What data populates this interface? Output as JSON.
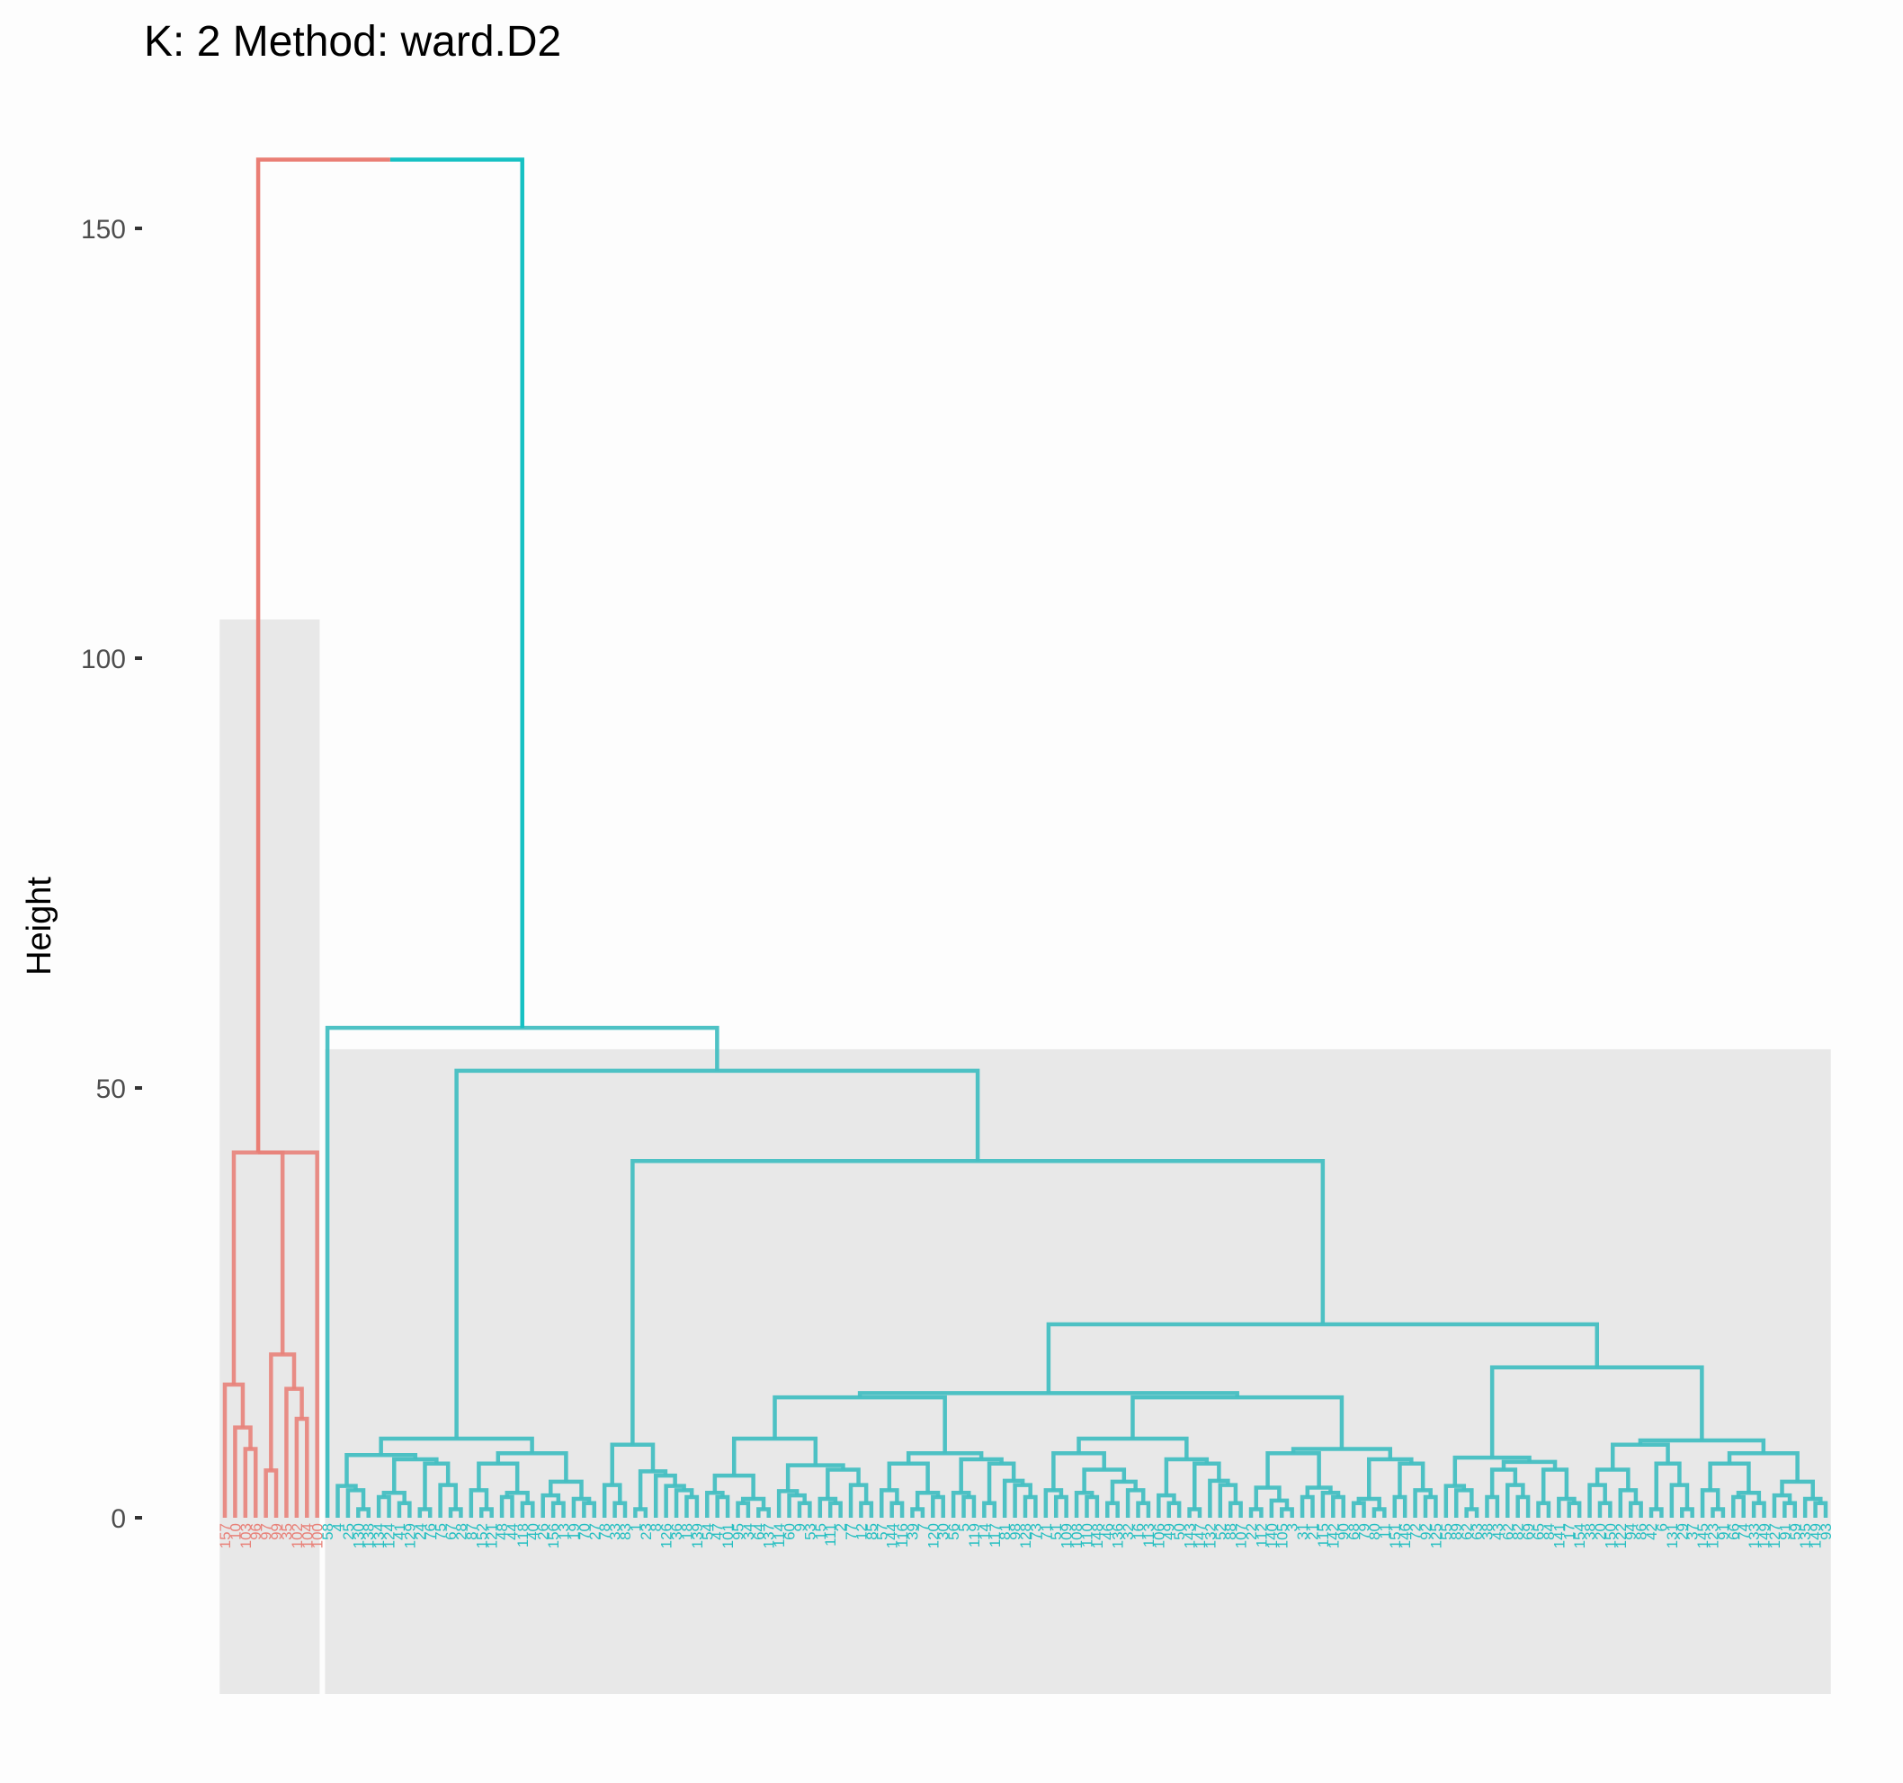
{
  "chart_data": {
    "type": "dendrogram",
    "title": "K: 2  Method: ward.D2",
    "ylabel": "Height",
    "xlabel": "",
    "ylim": [
      -20.5,
      158
    ],
    "yticks": [
      0,
      50,
      100,
      150
    ],
    "ytick_labels": [
      "0",
      "50",
      "100",
      "150"
    ],
    "k": 2,
    "method": "ward.D2",
    "cluster_colors": [
      "#E8827A",
      "#26BFC1"
    ],
    "rect_fill": "#e8e8e8",
    "clusters": [
      {
        "name": "1",
        "color": "#E8827A",
        "leaves": [
          "157",
          "10",
          "103",
          "96",
          "97",
          "99",
          "35",
          "102",
          "104",
          "100"
        ],
        "rect_top": 104.5,
        "tree": [
          [
            [
              [
                [
                  0,
                  [
                    1,
                    [
                      2,
                      3
                    ]
                  ]
                ],
                [
                  [
                    4,
                    5
                  ],
                  [
                    6,
                    [
                      7,
                      8
                    ]
                  ]
                ]
              ],
              9
            ],
            42.5
          ]
        ]
      },
      {
        "name": "2",
        "color": "#26BFC1",
        "leaves": [
          "58",
          "4",
          "25",
          "130",
          "138",
          "134",
          "124",
          "41",
          "129",
          "24",
          "76",
          "75",
          "67",
          "28",
          "87",
          "152",
          "121",
          "48",
          "44",
          "118",
          "40",
          "26",
          "156",
          "13",
          "19",
          "70",
          "27",
          "78",
          "33",
          "83",
          "1",
          "23",
          "8",
          "126",
          "36",
          "18",
          "139",
          "54",
          "47",
          "101",
          "95",
          "34",
          "64",
          "137",
          "114",
          "60",
          "9",
          "53",
          "15",
          "111",
          "2",
          "77",
          "12",
          "85",
          "57",
          "144",
          "116",
          "39",
          "7",
          "120",
          "30",
          "56",
          "5",
          "119",
          "14",
          "117",
          "81",
          "98",
          "128",
          "73",
          "71",
          "51",
          "109",
          "108",
          "110",
          "148",
          "46",
          "136",
          "32",
          "16",
          "113",
          "106",
          "49",
          "50",
          "143",
          "147",
          "132",
          "52",
          "88",
          "107",
          "22",
          "112",
          "140",
          "105",
          "3",
          "31",
          "21",
          "115",
          "142",
          "90",
          "68",
          "79",
          "80",
          "11",
          "151",
          "146",
          "72",
          "92",
          "125",
          "55",
          "89",
          "62",
          "63",
          "38",
          "43",
          "62b",
          "82",
          "69",
          "65",
          "84",
          "141",
          "17",
          "154",
          "38b",
          "20",
          "150",
          "122",
          "94",
          "86",
          "42",
          "6",
          "131",
          "29",
          "37",
          "145",
          "123",
          "91",
          "66",
          "74",
          "133",
          "149",
          "127",
          "91b",
          "59",
          "135",
          "149b",
          "93"
        ],
        "rect_top": 54.5,
        "merge_heights": [
          57,
          52,
          41.5,
          28,
          22.5,
          21,
          20.5,
          18,
          17.5,
          16,
          15.5,
          12.5,
          11.5,
          9,
          8.5,
          8,
          7.5,
          6.5,
          6,
          5.5,
          5,
          4.5,
          4,
          3.5,
          3,
          2.5,
          2,
          1.5,
          1
        ]
      }
    ],
    "root_height": 158
  }
}
